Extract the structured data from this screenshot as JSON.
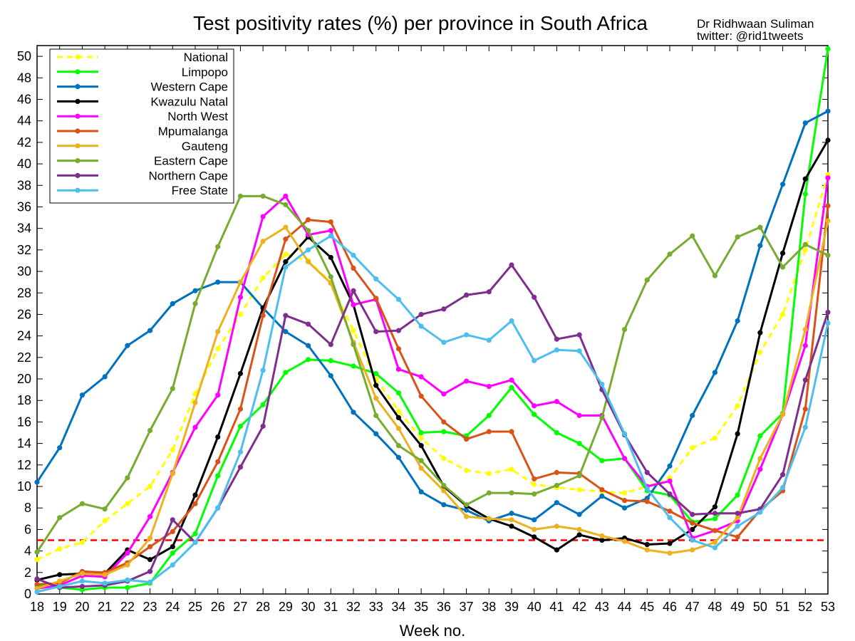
{
  "chart_data": {
    "type": "line",
    "title": "Test positivity rates (%) per province in South Africa",
    "credit_line1": "Dr Ridhwaan Suliman",
    "credit_line2": "twitter: @rid1tweets",
    "xlabel": "Week no.",
    "ylabel": "",
    "xlim": [
      18,
      53
    ],
    "ylim": [
      0,
      51
    ],
    "x_ticks": [
      18,
      19,
      20,
      21,
      22,
      23,
      24,
      25,
      26,
      27,
      28,
      29,
      30,
      31,
      32,
      33,
      34,
      35,
      36,
      37,
      38,
      39,
      40,
      41,
      42,
      43,
      44,
      45,
      46,
      47,
      48,
      49,
      50,
      51,
      52,
      53
    ],
    "y_ticks": [
      0,
      2,
      4,
      6,
      8,
      10,
      12,
      14,
      16,
      18,
      20,
      22,
      24,
      26,
      28,
      30,
      32,
      34,
      36,
      38,
      40,
      42,
      44,
      46,
      48,
      50
    ],
    "legend_position": "top-left",
    "grid": false,
    "threshold": {
      "value": 5,
      "color": "#ff0000",
      "style": "dashed"
    },
    "x": [
      18,
      19,
      20,
      21,
      22,
      23,
      24,
      25,
      26,
      27,
      28,
      29,
      30,
      31,
      32,
      33,
      34,
      35,
      36,
      37,
      38,
      39,
      40,
      41,
      42,
      43,
      44,
      45,
      46,
      47,
      48,
      49,
      50,
      51,
      52,
      53
    ],
    "series": [
      {
        "name": "National",
        "color": "#ffff00",
        "dashed": true,
        "values": [
          3.2,
          4.2,
          4.8,
          6.8,
          8.4,
          10.0,
          13.4,
          18.6,
          22.8,
          26.0,
          29.4,
          31.6,
          31.0,
          29.0,
          24.5,
          20.0,
          17.0,
          14.5,
          12.6,
          11.5,
          11.2,
          11.6,
          10.2,
          9.9,
          9.7,
          9.5,
          9.4,
          10.0,
          10.8,
          13.6,
          14.5,
          17.5,
          22.5,
          26.0,
          32.0,
          39.0
        ]
      },
      {
        "name": "Limpopo",
        "color": "#00ff00",
        "dashed": false,
        "values": [
          0.8,
          0.6,
          0.4,
          0.6,
          0.6,
          1.0,
          3.8,
          5.6,
          11.0,
          15.6,
          17.6,
          20.6,
          21.8,
          21.7,
          21.2,
          20.5,
          18.7,
          15.0,
          15.1,
          14.7,
          16.6,
          19.2,
          16.7,
          15.0,
          14.0,
          12.4,
          12.6,
          9.6,
          9.2,
          6.7,
          7.0,
          9.2,
          14.7,
          16.8,
          37.2,
          50.7
        ]
      },
      {
        "name": "Western Cape",
        "color": "#0072bd",
        "dashed": false,
        "values": [
          10.4,
          13.6,
          18.5,
          20.2,
          23.1,
          24.5,
          27.0,
          28.2,
          29.0,
          29.0,
          26.6,
          24.4,
          23.1,
          20.3,
          16.9,
          14.9,
          12.7,
          9.5,
          8.3,
          7.8,
          6.8,
          7.5,
          6.9,
          8.5,
          7.4,
          9.1,
          8.0,
          8.9,
          11.9,
          16.6,
          20.6,
          25.4,
          32.4,
          38.1,
          43.8,
          44.9
        ]
      },
      {
        "name": "Kwazulu Natal",
        "color": "#000000",
        "dashed": false,
        "values": [
          1.3,
          1.8,
          1.9,
          1.9,
          4.1,
          3.2,
          4.4,
          9.2,
          14.6,
          20.5,
          26.6,
          30.9,
          33.2,
          31.3,
          26.9,
          19.4,
          16.4,
          13.8,
          10.0,
          8.2,
          7.0,
          6.3,
          5.3,
          4.1,
          5.5,
          5.0,
          5.2,
          4.6,
          4.7,
          6.0,
          8.1,
          14.9,
          24.3,
          31.7,
          38.6,
          42.2
        ]
      },
      {
        "name": "North West",
        "color": "#ff00ff",
        "dashed": false,
        "values": [
          0.5,
          0.8,
          1.7,
          1.6,
          3.8,
          7.2,
          11.3,
          15.5,
          18.5,
          27.6,
          35.1,
          37.0,
          33.4,
          33.8,
          26.9,
          27.4,
          20.9,
          20.2,
          18.6,
          19.8,
          19.3,
          19.9,
          17.5,
          17.9,
          16.6,
          16.6,
          12.6,
          10.0,
          10.5,
          5.2,
          5.9,
          6.8,
          11.6,
          16.7,
          23.1,
          38.7
        ]
      },
      {
        "name": "Mpumalanga",
        "color": "#d95319",
        "dashed": false,
        "values": [
          0.9,
          1.0,
          2.1,
          2.0,
          2.9,
          4.4,
          5.8,
          8.4,
          12.3,
          17.2,
          25.9,
          33.0,
          34.8,
          34.6,
          30.3,
          27.5,
          22.8,
          18.4,
          16.0,
          14.4,
          15.1,
          15.1,
          10.7,
          11.3,
          11.2,
          9.7,
          8.7,
          8.6,
          7.7,
          6.6,
          5.9,
          5.3,
          7.8,
          9.6,
          17.2,
          36.1
        ]
      },
      {
        "name": "Gauteng",
        "color": "#edb120",
        "dashed": false,
        "values": [
          0.5,
          1.2,
          1.9,
          1.8,
          2.7,
          5.2,
          11.2,
          17.8,
          24.4,
          29.0,
          32.8,
          34.1,
          30.9,
          28.9,
          23.4,
          18.2,
          15.4,
          11.7,
          9.6,
          7.2,
          7.0,
          6.9,
          6.0,
          6.3,
          6.0,
          5.4,
          4.9,
          4.1,
          3.8,
          4.1,
          4.8,
          7.1,
          12.6,
          16.7,
          24.6,
          34.7
        ]
      },
      {
        "name": "Eastern Cape",
        "color": "#77ac30",
        "dashed": false,
        "values": [
          3.9,
          7.1,
          8.4,
          7.9,
          10.8,
          15.2,
          19.1,
          27.0,
          32.3,
          37.0,
          37.0,
          36.2,
          33.8,
          29.5,
          23.2,
          16.6,
          13.8,
          12.4,
          10.1,
          8.3,
          9.4,
          9.4,
          9.3,
          10.1,
          11.0,
          16.4,
          24.6,
          29.2,
          31.6,
          33.3,
          29.6,
          33.2,
          34.1,
          30.4,
          32.5,
          31.5
        ]
      },
      {
        "name": "Northern Cape",
        "color": "#7e2f8e",
        "dashed": false,
        "values": [
          1.4,
          0.6,
          0.7,
          0.8,
          1.2,
          2.1,
          6.9,
          4.8,
          8.0,
          11.8,
          15.6,
          25.9,
          25.1,
          23.2,
          28.2,
          24.4,
          24.5,
          26.0,
          26.5,
          27.8,
          28.1,
          30.6,
          27.6,
          23.7,
          24.1,
          19.0,
          14.8,
          11.3,
          9.3,
          7.4,
          7.5,
          7.5,
          7.9,
          11.1,
          19.9,
          26.2
        ]
      },
      {
        "name": "Free State",
        "color": "#4dbeee",
        "dashed": false,
        "values": [
          0.2,
          0.7,
          1.2,
          1.0,
          1.3,
          1.1,
          2.7,
          4.8,
          8.0,
          13.2,
          20.8,
          30.4,
          32.0,
          33.3,
          31.5,
          29.3,
          27.4,
          24.9,
          23.4,
          24.1,
          23.6,
          25.4,
          21.7,
          22.7,
          22.6,
          19.5,
          14.9,
          9.8,
          7.1,
          5.0,
          4.3,
          6.3,
          7.6,
          9.9,
          15.5,
          25.2
        ]
      }
    ]
  }
}
